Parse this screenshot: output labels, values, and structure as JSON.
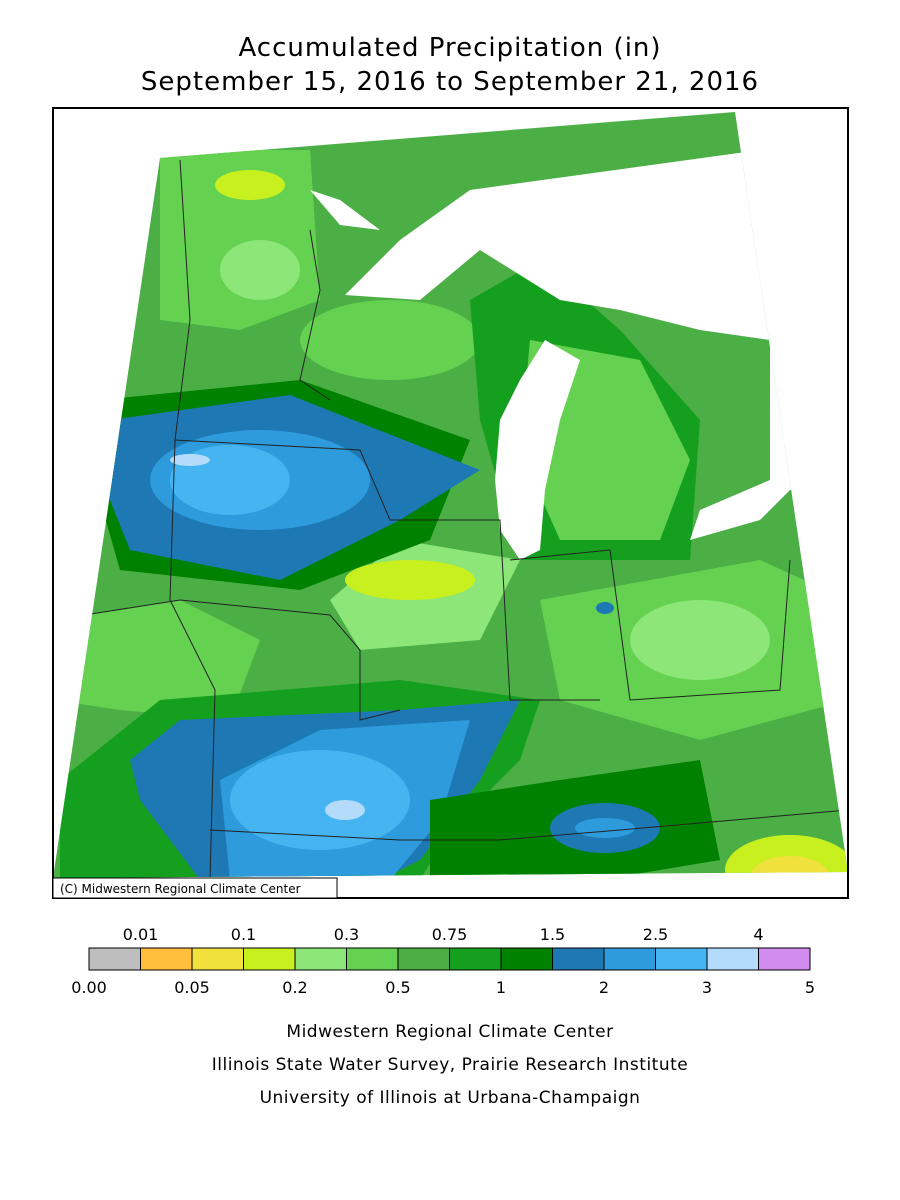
{
  "title": [
    "Accumulated Precipitation (in)",
    "September 15, 2016 to September 21, 2016"
  ],
  "map": {
    "credit": "(C) Midwestern Regional Climate Center"
  },
  "legend": {
    "colors": [
      "#bebebe",
      "#ffbe3c",
      "#f0e13c",
      "#c8f01e",
      "#8ce678",
      "#64d250",
      "#4baf46",
      "#14a01e",
      "#008200",
      "#1e78b4",
      "#2d9bdc",
      "#46b4f0",
      "#b4dcfa",
      "#d28cf0"
    ],
    "upper_labels": [
      "0.01",
      "0.1",
      "0.3",
      "0.75",
      "1.5",
      "2.5",
      "4"
    ],
    "lower_labels": [
      "0.00",
      "0.05",
      "0.2",
      "0.5",
      "1",
      "2",
      "3",
      "5"
    ]
  },
  "footer": [
    "Midwestern Regional Climate Center",
    "Illinois State Water Survey, Prairie Research Institute",
    "University of Illinois at Urbana-Champaign"
  ]
}
